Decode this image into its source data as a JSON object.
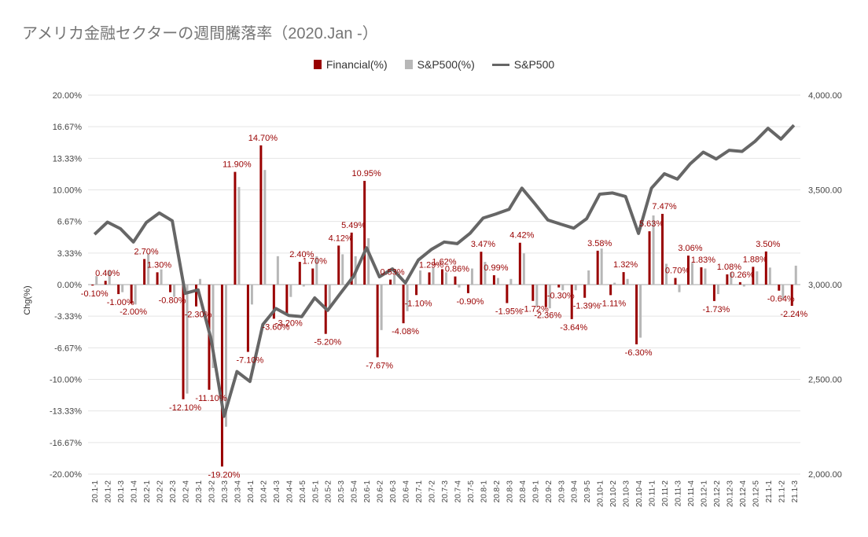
{
  "title": "アメリカ金融セクターの週間騰落率（2020.Jan -）",
  "legend": [
    {
      "label": "Financial(%)",
      "color": "#990000",
      "kind": "bar"
    },
    {
      "label": "S&P500(%)",
      "color": "#b7b7b7",
      "kind": "bar"
    },
    {
      "label": "S&P500",
      "color": "#666666",
      "kind": "line"
    }
  ],
  "chart_data": {
    "type": "bar",
    "title": "アメリカ金融セクターの週間騰落率（2020.Jan -）",
    "ylabel": "Chg(%)",
    "ylim": [
      -20,
      20
    ],
    "y_ticks": [
      "20.00%",
      "16.67%",
      "13.33%",
      "10.00%",
      "6.67%",
      "3.33%",
      "0.00%",
      "-3.33%",
      "-6.67%",
      "-10.00%",
      "-13.33%",
      "-16.67%",
      "-20.00%"
    ],
    "y2lim": [
      2000,
      4000
    ],
    "y2_ticks": [
      "4,000.00",
      "3,500.00",
      "3,000.00",
      "2,500.00",
      "2,000.00"
    ],
    "categories": [
      "20.1-1",
      "20.1-2",
      "20.1-3",
      "20.1-4",
      "20.2-1",
      "20.2-2",
      "20.2-3",
      "20.2-4",
      "20.3-1",
      "20.3-2",
      "20.3-3",
      "20.3-4",
      "20.4-1",
      "20.4-2",
      "20.4-3",
      "20.4-4",
      "20.4-5",
      "20.5-1",
      "20.5-2",
      "20.5-3",
      "20.5-4",
      "20.6-1",
      "20.6-2",
      "20.6-3",
      "20.6-4",
      "20.7-1",
      "20.7-2",
      "20.7-3",
      "20.7-4",
      "20.7-5",
      "20.8-1",
      "20.8-2",
      "20.8-3",
      "20.8-4",
      "20.9-1",
      "20.9-2",
      "20.9-3",
      "20.9-4",
      "20.9-5",
      "20.10-1",
      "20.10-2",
      "20.10-3",
      "20.10-4",
      "20.11-1",
      "20.11-2",
      "20.11-3",
      "20.11-4",
      "20.12-1",
      "20.12-2",
      "20.12-3",
      "20.12-4",
      "20.12-5",
      "21.1-1",
      "21.1-2",
      "21.1-3"
    ],
    "series": [
      {
        "name": "Financial(%)",
        "color": "#990000",
        "axis": "left",
        "kind": "bar",
        "labels": [
          "-0.10%",
          "0.40%",
          "-1.00%",
          "-2.00%",
          "2.70%",
          "1.30%",
          "-0.80%",
          "-12.10%",
          "-2.30%",
          "-11.10%",
          "-19.20%",
          "11.90%",
          "-7.10%",
          "14.70%",
          "-3.60%",
          "-3.20%",
          "2.40%",
          "1.70%",
          "-5.20%",
          "4.12%",
          "5.49%",
          "10.95%",
          "-7.67%",
          "0.53%",
          "-4.08%",
          "-1.10%",
          "1.29%",
          "1.62%",
          "0.86%",
          "-0.90%",
          "3.47%",
          "0.99%",
          "-1.95%",
          "4.42%",
          "-1.72%",
          "-2.36%",
          "-0.30%",
          "-3.64%",
          "-1.39%",
          "3.58%",
          "-1.11%",
          "1.32%",
          "-6.30%",
          "5.63%",
          "7.47%",
          "0.70%",
          "3.06%",
          "1.83%",
          "-1.73%",
          "1.08%",
          "0.26%",
          "1.88%",
          "3.50%",
          "-0.64%",
          "-2.24%"
        ],
        "values": [
          -0.1,
          0.4,
          -1.0,
          -2.0,
          2.7,
          1.3,
          -0.8,
          -12.1,
          -2.3,
          -11.1,
          -19.2,
          11.9,
          -7.1,
          14.7,
          -3.6,
          -3.2,
          2.4,
          1.7,
          -5.2,
          4.12,
          5.49,
          10.95,
          -7.67,
          0.53,
          -4.08,
          -1.1,
          1.29,
          1.62,
          0.86,
          -0.9,
          3.47,
          0.99,
          -1.95,
          4.42,
          -1.72,
          -2.36,
          -0.3,
          -3.64,
          -1.39,
          3.58,
          -1.11,
          1.32,
          -6.3,
          5.63,
          7.47,
          0.7,
          3.06,
          1.83,
          -1.73,
          1.08,
          0.26,
          1.88,
          3.5,
          -0.64,
          -2.24
        ]
      },
      {
        "name": "S&P500(%)",
        "color": "#b7b7b7",
        "axis": "left",
        "kind": "bar",
        "values": [
          0.9,
          1.5,
          -0.8,
          -2.1,
          3.2,
          1.6,
          -1.3,
          -11.5,
          0.6,
          -8.8,
          -15.0,
          10.3,
          -2.1,
          12.1,
          3.0,
          -1.3,
          -0.2,
          3.0,
          -2.3,
          3.2,
          3.0,
          4.9,
          -4.8,
          1.0,
          -2.8,
          1.5,
          1.8,
          1.3,
          -0.3,
          1.7,
          2.4,
          0.7,
          0.6,
          3.3,
          -2.3,
          -2.5,
          -0.6,
          -0.6,
          1.5,
          3.8,
          0.2,
          0.6,
          -5.6,
          7.3,
          2.2,
          -0.8,
          2.3,
          1.7,
          -1.0,
          1.3,
          -0.2,
          1.4,
          1.8,
          -1.5,
          2.0
        ]
      },
      {
        "name": "S&P500",
        "color": "#666666",
        "axis": "right",
        "kind": "line",
        "values": [
          3265,
          3330,
          3295,
          3225,
          3328,
          3378,
          3337,
          2954,
          2972,
          2711,
          2305,
          2541,
          2489,
          2790,
          2874,
          2837,
          2831,
          2930,
          2864,
          2955,
          3044,
          3194,
          3041,
          3083,
          3009,
          3130,
          3185,
          3225,
          3216,
          3271,
          3351,
          3373,
          3397,
          3509,
          3427,
          3341,
          3319,
          3298,
          3348,
          3477,
          3484,
          3465,
          3270,
          3509,
          3585,
          3557,
          3638,
          3699,
          3663,
          3709,
          3703,
          3756,
          3825,
          3768,
          3841
        ]
      }
    ]
  }
}
